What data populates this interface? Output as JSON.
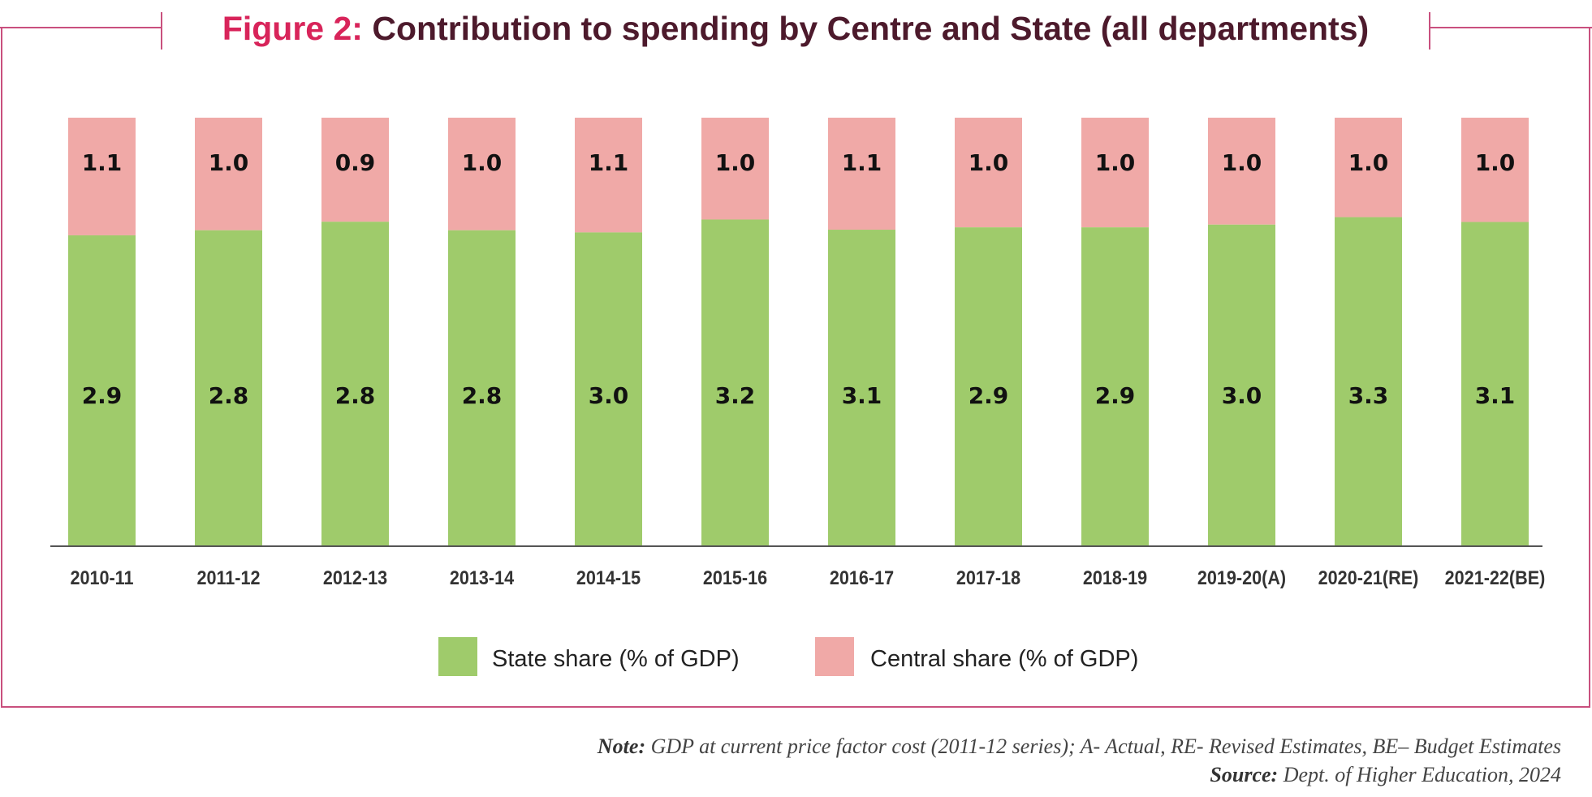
{
  "title": {
    "prefix": "Figure 2:",
    "text": "Contribution to spending by Centre and State (all departments)"
  },
  "colors": {
    "state": "#9fcb6b",
    "central": "#f0a9a7",
    "frame": "#c9507e",
    "title_prefix": "#d8245a",
    "title_text": "#4d1a2c"
  },
  "chart_data": {
    "type": "bar",
    "stacked": true,
    "normalized": true,
    "title": "Contribution to spending by Centre and State (all departments)",
    "categories": [
      "2010-11",
      "2011-12",
      "2012-13",
      "2013-14",
      "2014-15",
      "2015-16",
      "2016-17",
      "2017-18",
      "2018-19",
      "2019-20(A)",
      "2020-21(RE)",
      "2021-22(BE)"
    ],
    "series": [
      {
        "name": "State share (% of GDP)",
        "values": [
          2.9,
          2.8,
          2.8,
          2.8,
          3.0,
          3.2,
          3.1,
          2.9,
          2.9,
          3.0,
          3.3,
          3.1
        ]
      },
      {
        "name": "Central share (% of GDP)",
        "values": [
          1.1,
          1.0,
          0.9,
          1.0,
          1.1,
          1.0,
          1.1,
          1.0,
          1.0,
          1.0,
          1.0,
          1.0
        ]
      }
    ],
    "data_labels": true,
    "grid": false,
    "legend_position": "bottom"
  },
  "footer": {
    "note_label": "Note:",
    "note_text": " GDP at current price factor cost (2011-12 series); A- Actual, RE- Revised Estimates, BE– Budget Estimates",
    "source_label": "Source:",
    "source_text": " Dept. of Higher Education, 2024"
  }
}
